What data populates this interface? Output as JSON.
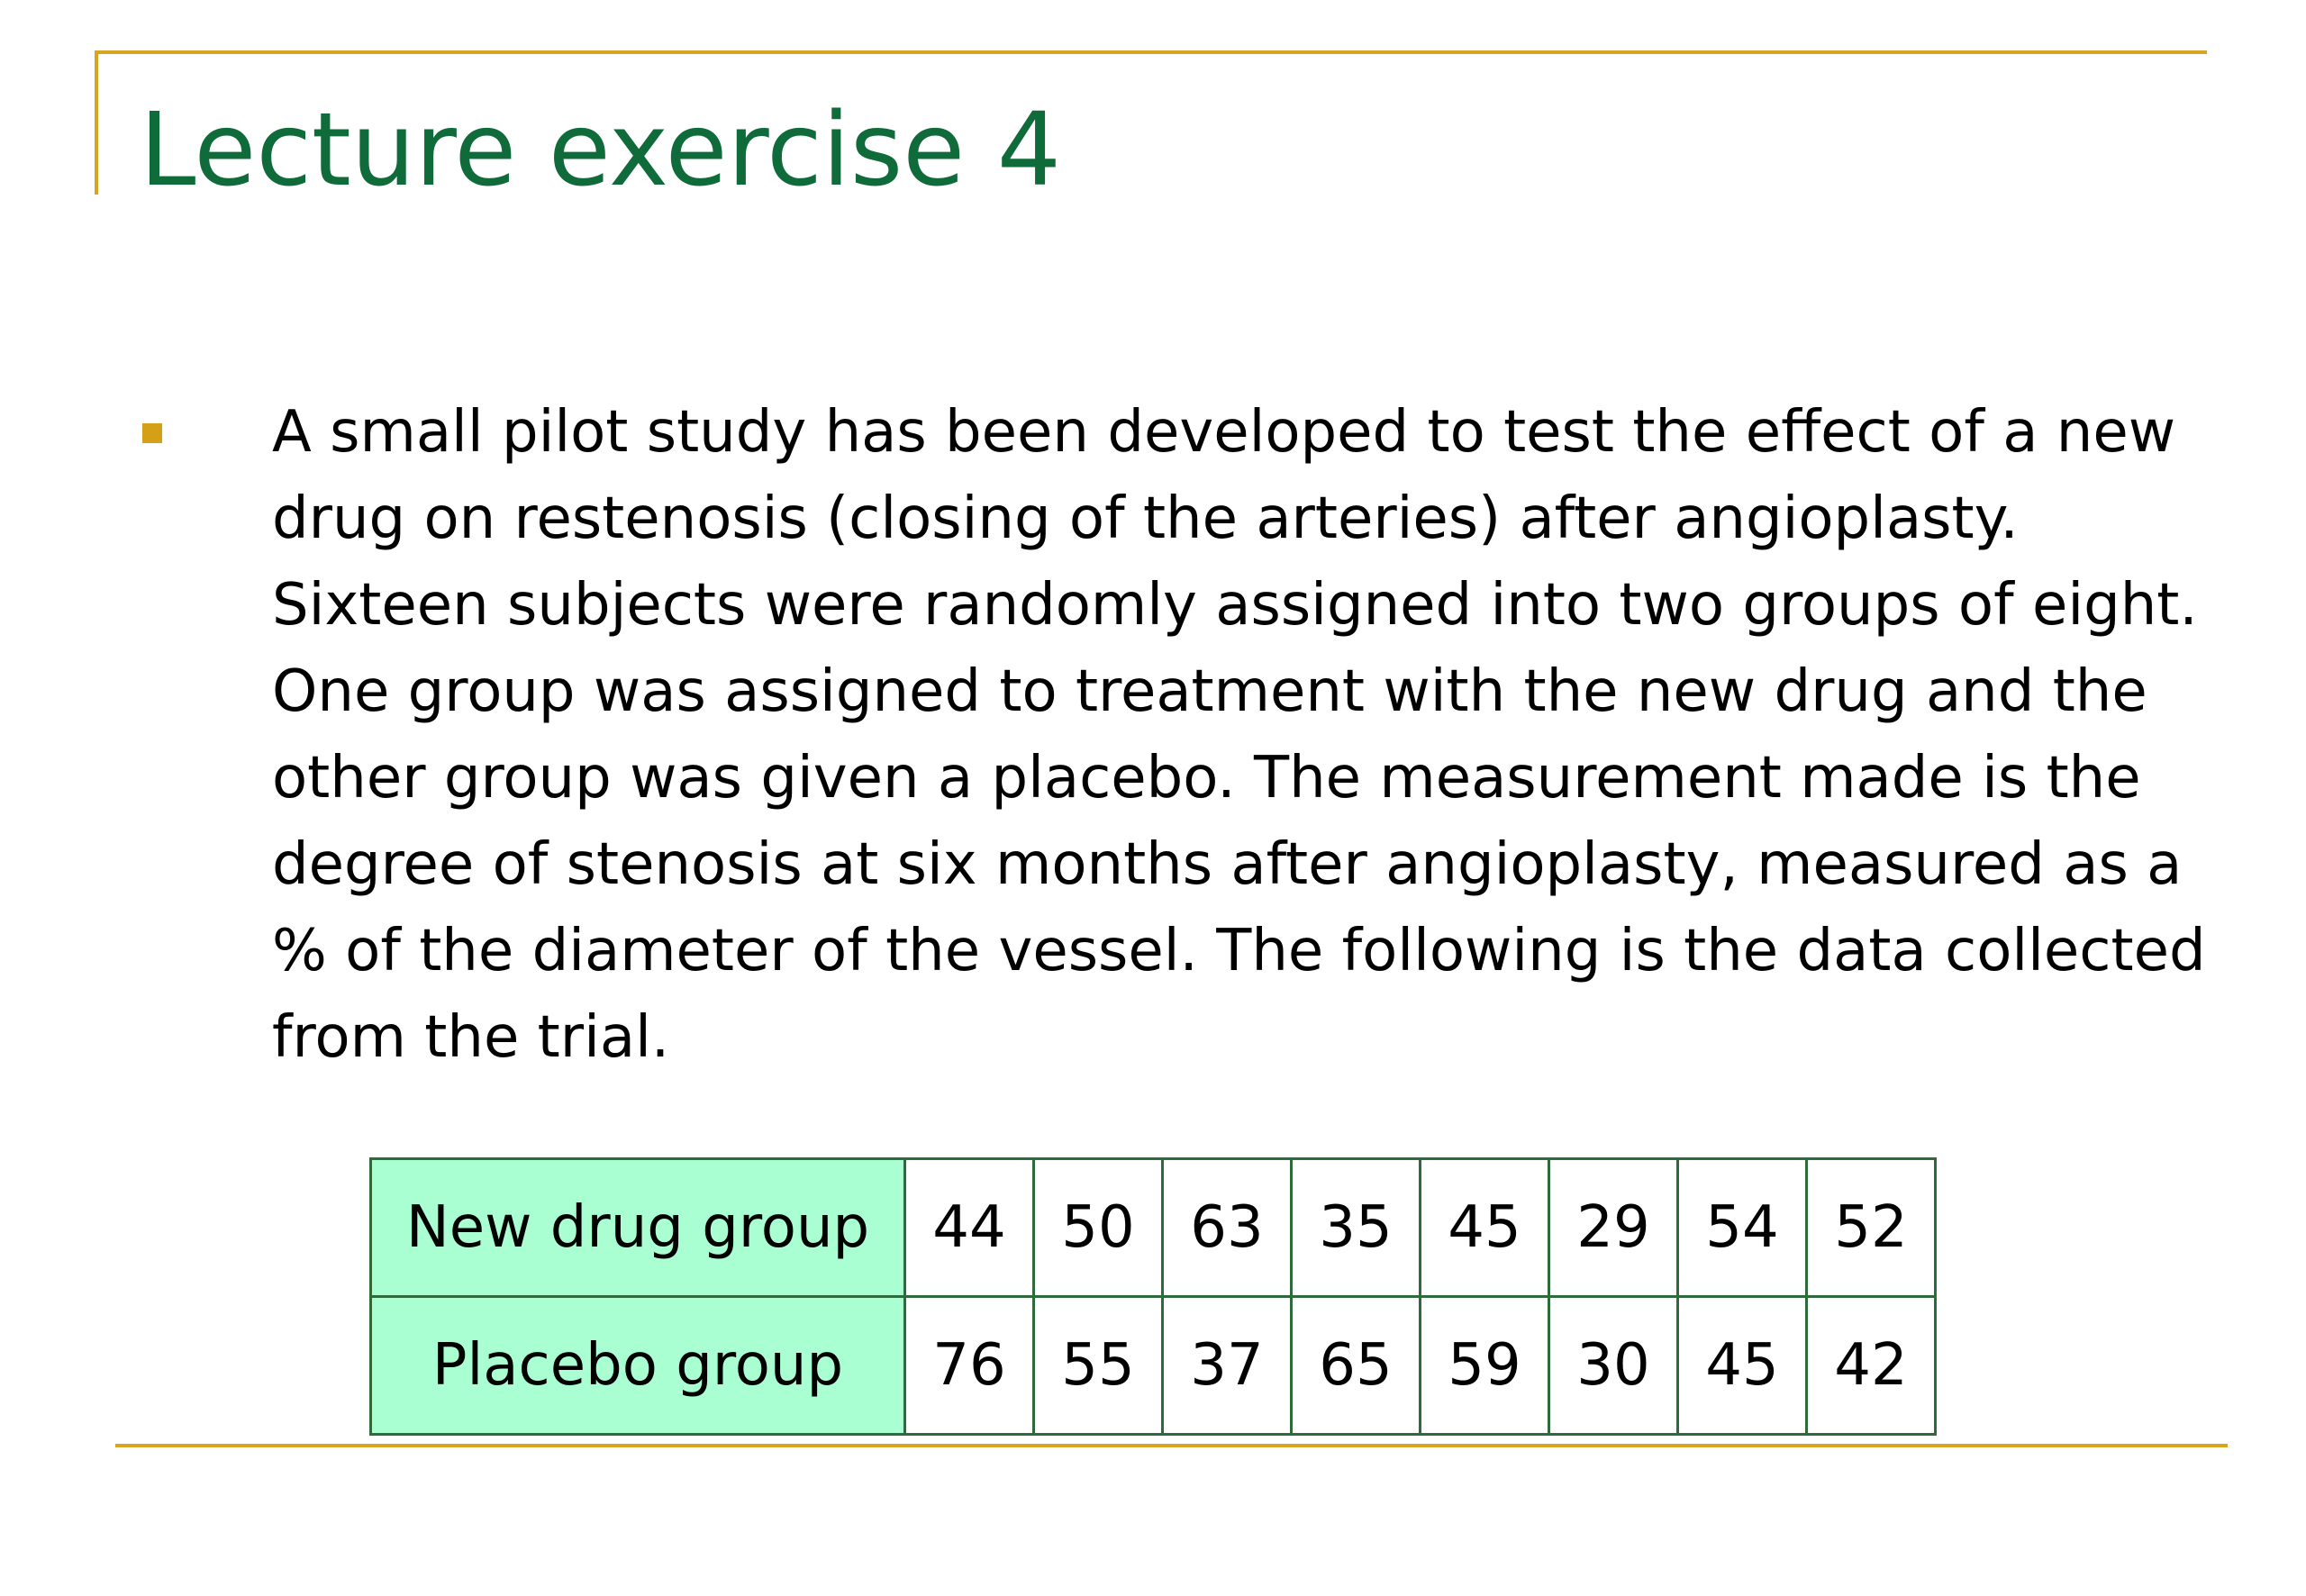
{
  "slide": {
    "title": "Lecture exercise 4",
    "body": "A small pilot study has been developed to test the effect of a new drug on restenosis (closing of the arteries) after angioplasty. Sixteen subjects were randomly assigned into two groups of eight. One group was assigned to treatment with the new drug and the other group was given a placebo. The measurement made is the degree of stenosis at six months after angioplasty, measured as a % of the diameter of the vessel. The following is the data collected from the trial.",
    "colors": {
      "title": "#0f6b3a",
      "accent_rule": "#d9a520",
      "bullet": "#d4a017",
      "row_label_fill": "#aaffd2",
      "table_border": "#2e6b3a"
    }
  },
  "table": {
    "rows": [
      {
        "label": "New drug group",
        "values": [
          "44",
          "50",
          "63",
          "35",
          "45",
          "29",
          "54",
          "52"
        ]
      },
      {
        "label": "Placebo group",
        "values": [
          "76",
          "55",
          "37",
          "65",
          "59",
          "30",
          "45",
          "42"
        ]
      }
    ]
  }
}
